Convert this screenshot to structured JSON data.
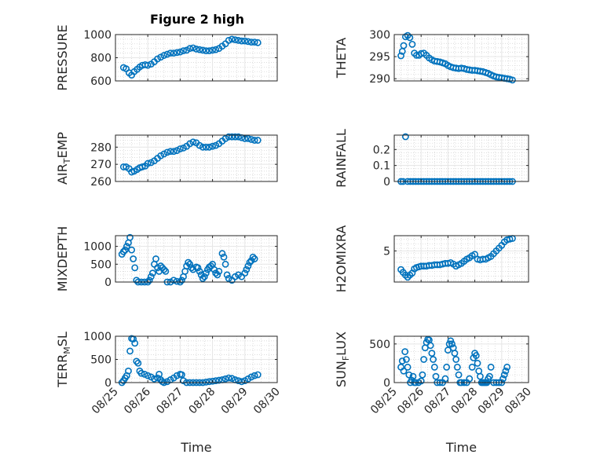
{
  "figure": {
    "title": "Figure 2 high",
    "marker_color": "#0072BD"
  },
  "chart_data": [
    {
      "type": "scatter",
      "ylabel": "PRESSURE",
      "ylim": [
        600,
        1000
      ],
      "yticks": [
        600,
        800,
        1000
      ],
      "grid": true,
      "series": [
        {
          "x": [
            25.25,
            25.33,
            25.42,
            25.5,
            25.58,
            25.67,
            25.75,
            25.83,
            25.92,
            26.0,
            26.1,
            26.2,
            26.3,
            26.4,
            26.5,
            26.6,
            26.7,
            26.8,
            26.9,
            27.0,
            27.1,
            27.2,
            27.3,
            27.4,
            27.5,
            27.6,
            27.7,
            27.8,
            27.9,
            28.0,
            28.1,
            28.2,
            28.3,
            28.4,
            28.5,
            28.6,
            28.7,
            28.8,
            28.9,
            29.0,
            29.1,
            29.2,
            29.3,
            29.4
          ],
          "y": [
            715,
            705,
            670,
            650,
            680,
            700,
            720,
            735,
            740,
            735,
            745,
            765,
            790,
            805,
            820,
            830,
            840,
            840,
            845,
            850,
            860,
            865,
            880,
            885,
            875,
            870,
            865,
            860,
            860,
            865,
            870,
            880,
            900,
            920,
            950,
            960,
            955,
            950,
            945,
            945,
            940,
            935,
            935,
            930
          ]
        }
      ]
    },
    {
      "type": "scatter",
      "ylabel": "THETA",
      "ylim": [
        289.5,
        300
      ],
      "yticks": [
        290,
        295,
        300
      ],
      "grid": true,
      "series": [
        {
          "x": [
            25.25,
            25.3,
            25.35,
            25.42,
            25.5,
            25.58,
            25.67,
            25.75,
            25.83,
            25.92,
            26.0,
            26.1,
            26.2,
            26.3,
            26.4,
            26.5,
            26.6,
            26.7,
            26.8,
            26.9,
            27.0,
            27.1,
            27.2,
            27.3,
            27.4,
            27.5,
            27.6,
            27.7,
            27.8,
            27.9,
            28.0,
            28.1,
            28.2,
            28.3,
            28.4,
            28.5,
            28.6,
            28.7,
            28.8,
            28.9,
            29.0,
            29.1,
            29.2,
            29.3,
            29.4
          ],
          "y": [
            295.2,
            296.2,
            297.5,
            299.5,
            299.8,
            299.3,
            297.8,
            295.8,
            295.3,
            295.3,
            295.7,
            295.8,
            295.3,
            294.7,
            294.3,
            294.0,
            293.9,
            293.8,
            293.6,
            293.4,
            293.0,
            292.7,
            292.5,
            292.4,
            292.3,
            292.4,
            292.3,
            292.1,
            292.0,
            291.9,
            291.9,
            291.8,
            291.7,
            291.6,
            291.4,
            291.2,
            290.9,
            290.6,
            290.4,
            290.3,
            290.2,
            290.1,
            290.0,
            289.9,
            289.7
          ]
        }
      ]
    },
    {
      "type": "scatter",
      "ylabel_main": "AIR",
      "ylabel_sub": "T",
      "ylabel_tail": "EMP",
      "ylim": [
        260,
        287
      ],
      "yticks": [
        260,
        270,
        280
      ],
      "grid": true,
      "series": [
        {
          "x": [
            25.25,
            25.33,
            25.42,
            25.5,
            25.58,
            25.67,
            25.75,
            25.83,
            25.92,
            26.0,
            26.1,
            26.2,
            26.3,
            26.4,
            26.5,
            26.6,
            26.7,
            26.8,
            26.9,
            27.0,
            27.1,
            27.2,
            27.3,
            27.4,
            27.5,
            27.6,
            27.7,
            27.8,
            27.9,
            28.0,
            28.1,
            28.2,
            28.3,
            28.4,
            28.5,
            28.6,
            28.7,
            28.8,
            28.9,
            29.0,
            29.1,
            29.2,
            29.3,
            29.4
          ],
          "y": [
            268.5,
            268.5,
            267.5,
            265.5,
            266.0,
            267.0,
            268.0,
            268.5,
            269.0,
            270.5,
            271.0,
            272.0,
            273.5,
            275.0,
            276.0,
            277.0,
            277.5,
            277.5,
            278.0,
            279.0,
            279.5,
            280.5,
            282.0,
            283.0,
            282.5,
            281.0,
            280.0,
            280.0,
            280.0,
            280.5,
            281.0,
            282.0,
            283.5,
            285.0,
            286.0,
            286.0,
            286.0,
            286.0,
            285.5,
            285.0,
            285.0,
            284.5,
            284.0,
            284.0
          ]
        }
      ]
    },
    {
      "type": "scatter",
      "ylabel": "RAINFALL",
      "ylim": [
        0,
        0.29
      ],
      "yticks": [
        0,
        0.1,
        0.2
      ],
      "grid": true,
      "series": [
        {
          "x": [
            25.25,
            25.33,
            25.42,
            25.5,
            25.6,
            25.7,
            25.8,
            25.9,
            26.0,
            26.1,
            26.2,
            26.3,
            26.4,
            26.5,
            26.6,
            26.7,
            26.8,
            26.9,
            27.0,
            27.1,
            27.2,
            27.3,
            27.4,
            27.5,
            27.6,
            27.7,
            27.8,
            27.9,
            28.0,
            28.1,
            28.2,
            28.3,
            28.4,
            28.5,
            28.6,
            28.7,
            28.8,
            28.9,
            29.0,
            29.1,
            29.2,
            29.3,
            29.4
          ],
          "y": [
            0,
            0,
            0.28,
            0,
            0,
            0,
            0,
            0,
            0,
            0,
            0,
            0,
            0,
            0,
            0,
            0,
            0,
            0,
            0,
            0,
            0,
            0,
            0,
            0,
            0,
            0,
            0,
            0,
            0,
            0,
            0,
            0,
            0,
            0,
            0,
            0,
            0,
            0,
            0,
            0,
            0,
            0,
            0
          ]
        }
      ]
    },
    {
      "type": "scatter",
      "ylabel": "MIXDEPTH",
      "ylim": [
        0,
        1300
      ],
      "yticks": [
        0,
        500,
        1000
      ],
      "grid": true,
      "series": [
        {
          "x": [
            25.2,
            25.25,
            25.3,
            25.35,
            25.4,
            25.45,
            25.5,
            25.55,
            25.6,
            25.65,
            25.7,
            25.8,
            25.9,
            26.0,
            26.05,
            26.1,
            26.15,
            26.2,
            26.25,
            26.3,
            26.35,
            26.4,
            26.45,
            26.5,
            26.55,
            26.6,
            26.7,
            26.8,
            26.9,
            27.0,
            27.05,
            27.1,
            27.15,
            27.2,
            27.25,
            27.3,
            27.35,
            27.4,
            27.5,
            27.55,
            27.6,
            27.65,
            27.7,
            27.75,
            27.8,
            27.85,
            27.9,
            27.95,
            28.0,
            28.05,
            28.1,
            28.15,
            28.2,
            28.3,
            28.35,
            28.4,
            28.45,
            28.5,
            28.6,
            28.7,
            28.8,
            28.9,
            29.0,
            29.05,
            29.1,
            29.15,
            29.2,
            29.25,
            29.3
          ],
          "y": [
            780,
            850,
            900,
            1000,
            1100,
            1250,
            900,
            650,
            400,
            50,
            0,
            0,
            0,
            0,
            50,
            150,
            250,
            500,
            650,
            400,
            300,
            450,
            400,
            350,
            300,
            0,
            0,
            50,
            20,
            0,
            50,
            150,
            300,
            450,
            550,
            500,
            400,
            350,
            420,
            400,
            300,
            200,
            100,
            150,
            250,
            350,
            420,
            450,
            500,
            350,
            250,
            200,
            300,
            800,
            700,
            500,
            200,
            100,
            50,
            150,
            200,
            150,
            250,
            350,
            450,
            550,
            600,
            700,
            650
          ]
        }
      ]
    },
    {
      "type": "scatter",
      "ylabel": "H2OMIXRA",
      "ylim": [
        0.5,
        7.2
      ],
      "yticks": [
        5
      ],
      "grid": true,
      "series": [
        {
          "x": [
            25.25,
            25.33,
            25.42,
            25.5,
            25.58,
            25.67,
            25.75,
            25.83,
            25.92,
            26.0,
            26.1,
            26.2,
            26.3,
            26.4,
            26.5,
            26.6,
            26.7,
            26.8,
            26.9,
            27.0,
            27.1,
            27.2,
            27.3,
            27.4,
            27.5,
            27.6,
            27.7,
            27.8,
            27.9,
            28.0,
            28.1,
            28.2,
            28.3,
            28.4,
            28.5,
            28.6,
            28.7,
            28.8,
            28.9,
            29.0,
            29.1,
            29.2,
            29.3,
            29.4
          ],
          "y": [
            2.3,
            1.9,
            1.5,
            1.2,
            1.5,
            1.8,
            2.4,
            2.6,
            2.7,
            2.8,
            2.8,
            2.8,
            2.9,
            2.9,
            3.0,
            3.0,
            3.0,
            3.1,
            3.2,
            3.2,
            3.3,
            3.1,
            2.8,
            3.0,
            3.2,
            3.5,
            3.8,
            4.0,
            4.3,
            4.5,
            3.8,
            3.7,
            3.8,
            3.8,
            4.0,
            4.2,
            4.6,
            5.0,
            5.4,
            5.8,
            6.3,
            6.6,
            6.7,
            6.8
          ]
        }
      ]
    },
    {
      "type": "scatter",
      "ylabel_main": "TERR",
      "ylabel_sub": "M",
      "ylabel_tail": "SL",
      "ylim": [
        0,
        1000
      ],
      "yticks": [
        0,
        500,
        1000
      ],
      "xticks": [
        "08/25",
        "08/26",
        "08/27",
        "08/28",
        "08/29",
        "08/30"
      ],
      "xlabel": "Time",
      "grid": true,
      "series": [
        {
          "x": [
            25.2,
            25.25,
            25.3,
            25.35,
            25.4,
            25.45,
            25.5,
            25.55,
            25.6,
            25.65,
            25.7,
            25.75,
            25.8,
            25.9,
            26.0,
            26.1,
            26.2,
            26.3,
            26.35,
            26.4,
            26.45,
            26.5,
            26.6,
            26.7,
            26.8,
            26.9,
            27.0,
            27.05,
            27.1,
            27.2,
            27.3,
            27.4,
            27.5,
            27.6,
            27.7,
            27.8,
            27.9,
            28.0,
            28.1,
            28.2,
            28.3,
            28.4,
            28.5,
            28.6,
            28.7,
            28.8,
            28.9,
            29.0,
            29.1,
            29.2,
            29.3,
            29.4
          ],
          "y": [
            0,
            40,
            100,
            150,
            250,
            680,
            950,
            940,
            850,
            460,
            420,
            250,
            200,
            180,
            150,
            120,
            80,
            100,
            180,
            60,
            20,
            0,
            20,
            60,
            100,
            150,
            180,
            170,
            40,
            0,
            0,
            0,
            0,
            0,
            0,
            10,
            20,
            30,
            40,
            50,
            60,
            80,
            100,
            90,
            60,
            40,
            20,
            40,
            80,
            120,
            150,
            170
          ]
        }
      ]
    },
    {
      "type": "scatter",
      "ylabel_main": "SUN",
      "ylabel_sub": "F",
      "ylabel_tail": "LUX",
      "ylim": [
        0,
        600
      ],
      "yticks": [
        0,
        500
      ],
      "xticks": [
        "08/25",
        "08/26",
        "08/27",
        "08/28",
        "08/29",
        "08/30"
      ],
      "xlabel": "Time",
      "grid": true,
      "series": [
        {
          "x": [
            25.25,
            25.3,
            25.35,
            25.4,
            25.45,
            25.5,
            25.55,
            25.6,
            25.65,
            25.7,
            25.75,
            25.8,
            25.9,
            26.0,
            26.05,
            26.1,
            26.15,
            26.2,
            26.25,
            26.3,
            26.35,
            26.4,
            26.45,
            26.5,
            26.55,
            26.6,
            26.7,
            26.8,
            26.9,
            26.95,
            27.0,
            27.05,
            27.1,
            27.15,
            27.2,
            27.25,
            27.3,
            27.35,
            27.4,
            27.45,
            27.5,
            27.6,
            27.7,
            27.8,
            27.9,
            27.95,
            28.0,
            28.05,
            28.1,
            28.15,
            28.2,
            28.25,
            28.3,
            28.35,
            28.4,
            28.45,
            28.5,
            28.55,
            28.6,
            28.7,
            28.8,
            28.9,
            29.0,
            29.05,
            29.1,
            29.15,
            29.2
          ],
          "y": [
            200,
            280,
            150,
            400,
            300,
            200,
            100,
            0,
            30,
            80,
            0,
            0,
            0,
            20,
            100,
            300,
            450,
            520,
            560,
            550,
            480,
            380,
            300,
            200,
            80,
            0,
            0,
            0,
            50,
            200,
            420,
            500,
            540,
            500,
            450,
            380,
            300,
            200,
            100,
            0,
            0,
            0,
            0,
            50,
            200,
            320,
            380,
            350,
            250,
            150,
            80,
            0,
            0,
            0,
            0,
            0,
            50,
            80,
            200,
            0,
            0,
            0,
            0,
            50,
            100,
            150,
            200
          ]
        }
      ]
    }
  ]
}
